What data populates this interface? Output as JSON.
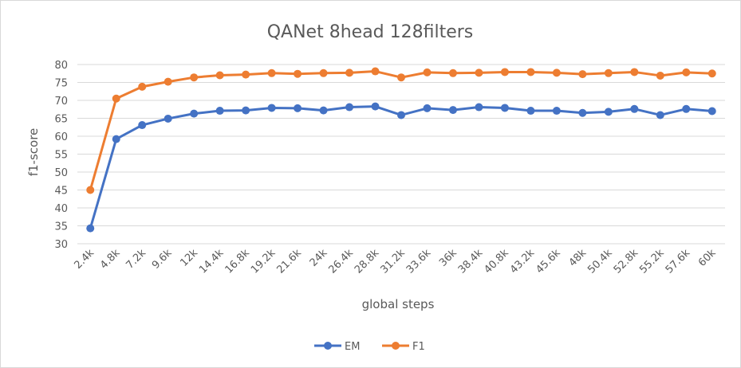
{
  "chart_data": {
    "type": "line",
    "title": "QANet 8head 128filters",
    "xlabel": "global steps",
    "ylabel": "f1-score",
    "ylim": [
      30,
      80
    ],
    "yticks": [
      30,
      35,
      40,
      45,
      50,
      55,
      60,
      65,
      70,
      75,
      80
    ],
    "grid": true,
    "legend_position": "bottom",
    "categories": [
      "2.4k",
      "4.8k",
      "7.2k",
      "9.6k",
      "12k",
      "14.4k",
      "16.8k",
      "19.2k",
      "21.6k",
      "24k",
      "26.4k",
      "28.8k",
      "31.2k",
      "33.6k",
      "36k",
      "38.4k",
      "40.8k",
      "43.2k",
      "45.6k",
      "48k",
      "50.4k",
      "52.8k",
      "55.2k",
      "57.6k",
      "60k"
    ],
    "series": [
      {
        "name": "EM",
        "color": "#4472c4",
        "values": [
          34.3,
          59.2,
          63.1,
          64.9,
          66.3,
          67.1,
          67.2,
          67.9,
          67.8,
          67.2,
          68.1,
          68.3,
          65.9,
          67.8,
          67.3,
          68.1,
          67.9,
          67.1,
          67.1,
          66.5,
          66.8,
          67.6,
          65.9,
          67.6,
          67.0
        ]
      },
      {
        "name": "F1",
        "color": "#ed7d31",
        "values": [
          45.0,
          70.5,
          73.8,
          75.2,
          76.4,
          77.0,
          77.2,
          77.6,
          77.4,
          77.6,
          77.7,
          78.1,
          76.4,
          77.8,
          77.6,
          77.7,
          77.9,
          77.9,
          77.7,
          77.3,
          77.6,
          77.9,
          76.9,
          77.8,
          77.5
        ]
      }
    ]
  }
}
